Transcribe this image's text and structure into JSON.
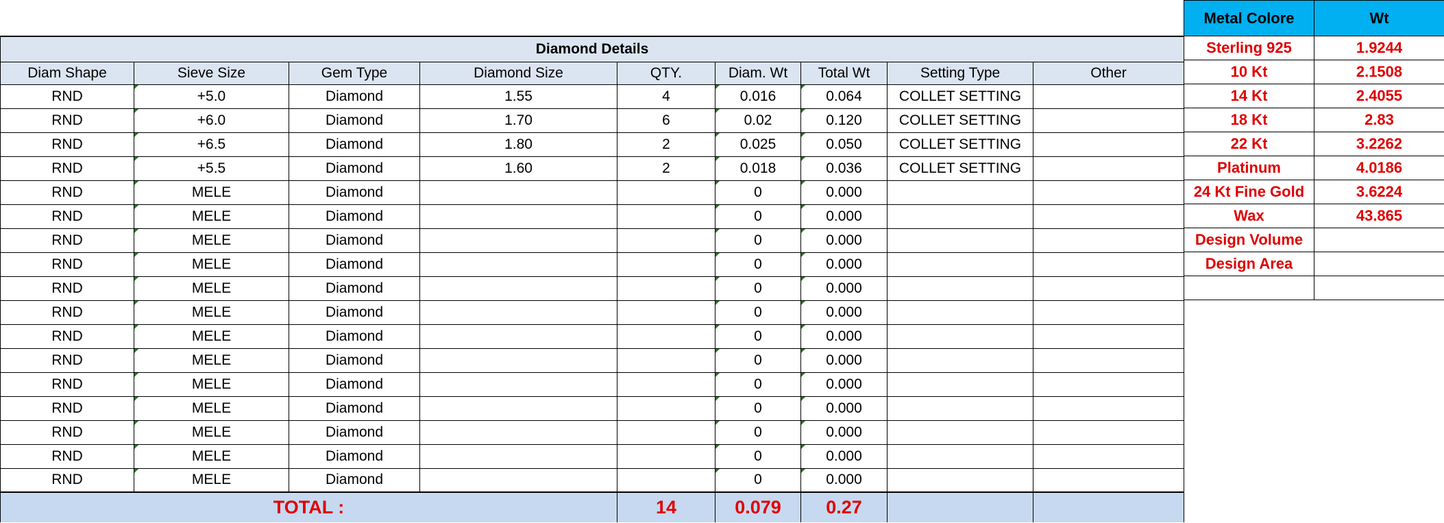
{
  "diamond_details": {
    "title": "Diamond Details",
    "headers": [
      "Diam Shape",
      "Sieve Size",
      "Gem Type",
      "Diamond Size",
      "QTY.",
      "Diam. Wt",
      "Total Wt",
      "Setting Type",
      "Other"
    ],
    "rows": [
      [
        "RND",
        "+5.0",
        "Diamond",
        "1.55",
        "4",
        "0.016",
        "0.064",
        "COLLET SETTING",
        ""
      ],
      [
        "RND",
        "+6.0",
        "Diamond",
        "1.70",
        "6",
        "0.02",
        "0.120",
        "COLLET SETTING",
        ""
      ],
      [
        "RND",
        "+6.5",
        "Diamond",
        "1.80",
        "2",
        "0.025",
        "0.050",
        "COLLET SETTING",
        ""
      ],
      [
        "RND",
        "+5.5",
        "Diamond",
        "1.60",
        "2",
        "0.018",
        "0.036",
        "COLLET SETTING",
        ""
      ],
      [
        "RND",
        "MELE",
        "Diamond",
        "",
        "",
        "0",
        "0.000",
        "",
        ""
      ],
      [
        "RND",
        "MELE",
        "Diamond",
        "",
        "",
        "0",
        "0.000",
        "",
        ""
      ],
      [
        "RND",
        "MELE",
        "Diamond",
        "",
        "",
        "0",
        "0.000",
        "",
        ""
      ],
      [
        "RND",
        "MELE",
        "Diamond",
        "",
        "",
        "0",
        "0.000",
        "",
        ""
      ],
      [
        "RND",
        "MELE",
        "Diamond",
        "",
        "",
        "0",
        "0.000",
        "",
        ""
      ],
      [
        "RND",
        "MELE",
        "Diamond",
        "",
        "",
        "0",
        "0.000",
        "",
        ""
      ],
      [
        "RND",
        "MELE",
        "Diamond",
        "",
        "",
        "0",
        "0.000",
        "",
        ""
      ],
      [
        "RND",
        "MELE",
        "Diamond",
        "",
        "",
        "0",
        "0.000",
        "",
        ""
      ],
      [
        "RND",
        "MELE",
        "Diamond",
        "",
        "",
        "0",
        "0.000",
        "",
        ""
      ],
      [
        "RND",
        "MELE",
        "Diamond",
        "",
        "",
        "0",
        "0.000",
        "",
        ""
      ],
      [
        "RND",
        "MELE",
        "Diamond",
        "",
        "",
        "0",
        "0.000",
        "",
        ""
      ],
      [
        "RND",
        "MELE",
        "Diamond",
        "",
        "",
        "0",
        "0.000",
        "",
        ""
      ],
      [
        "RND",
        "MELE",
        "Diamond",
        "",
        "",
        "0",
        "0.000",
        "",
        ""
      ]
    ],
    "total": {
      "label": "TOTAL :",
      "qty": "14",
      "diam_wt": "0.079",
      "total_wt": "0.27"
    }
  },
  "metal": {
    "headers": [
      "Metal Colore",
      "Wt"
    ],
    "rows": [
      [
        "Sterling 925",
        "1.9244"
      ],
      [
        "10 Kt",
        "2.1508"
      ],
      [
        "14 Kt",
        "2.4055"
      ],
      [
        "18 Kt",
        "2.83"
      ],
      [
        "22 Kt",
        "3.2262"
      ],
      [
        "Platinum",
        "4.0186"
      ],
      [
        "24 Kt Fine Gold",
        "3.6224"
      ],
      [
        "Wax",
        "43.865"
      ],
      [
        "Design Volume",
        ""
      ],
      [
        "Design Area",
        ""
      ],
      [
        "",
        ""
      ]
    ]
  },
  "colors": {
    "header_fill": "#dbe5f1",
    "total_fill": "#c6d9f0",
    "metal_header": "#00b0f0",
    "red_text": "#e00000"
  }
}
